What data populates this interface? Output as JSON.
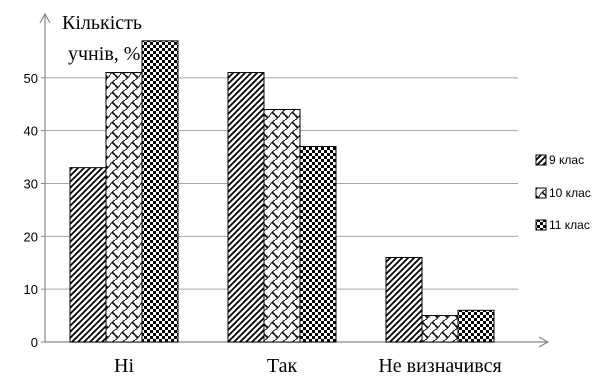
{
  "chart_data": {
    "type": "bar",
    "ylabel": [
      "Кількість",
      "учнів, %"
    ],
    "xlabel": "",
    "categories": [
      "Ні",
      "Так",
      "Не визначився"
    ],
    "yticks": [
      0,
      10,
      20,
      30,
      40,
      50
    ],
    "ylim": [
      0,
      60
    ],
    "grid": true,
    "legend_position": "right",
    "series": [
      {
        "name": "9 клас",
        "values": [
          33,
          51,
          16
        ],
        "pattern": "diagonal-stripes"
      },
      {
        "name": "10 клас",
        "values": [
          51,
          44,
          5
        ],
        "pattern": "wave-crosshatch"
      },
      {
        "name": "11 клас",
        "values": [
          57,
          37,
          6
        ],
        "pattern": "checkerboard"
      }
    ]
  }
}
